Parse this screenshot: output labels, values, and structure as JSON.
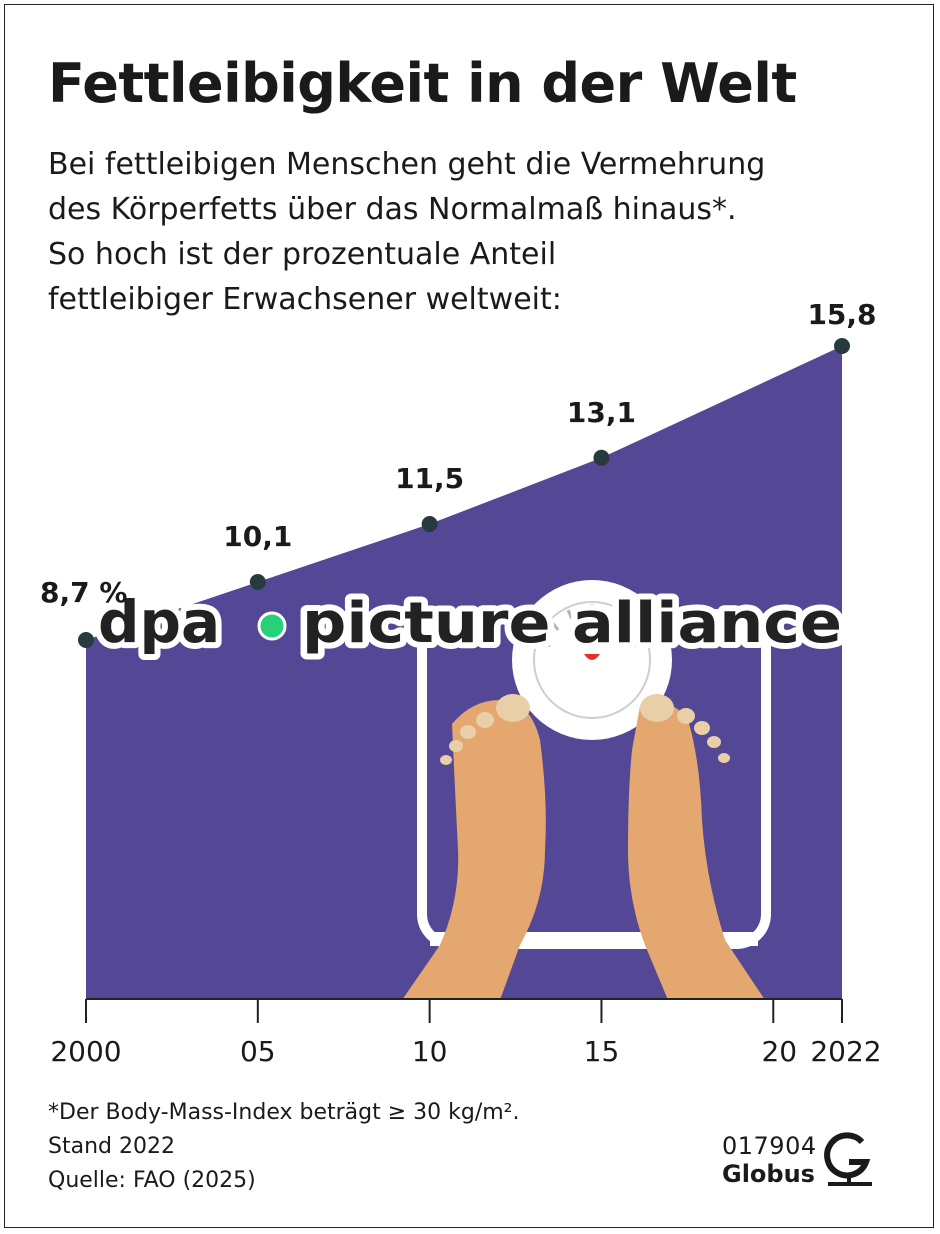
{
  "header": {
    "title": "Fettleibigkeit in der Welt",
    "subtitle_lines": [
      "Bei fettleibigen Menschen geht die Vermehrung",
      "des Körperfetts über das Normalmaß hinaus*.",
      "So hoch ist der prozentuale Anteil",
      "fettleibiger Erwachsener weltweit:"
    ]
  },
  "chart_data": {
    "type": "area",
    "x": [
      2000,
      2005,
      2010,
      2015,
      2022
    ],
    "values": [
      8.7,
      10.1,
      11.5,
      13.1,
      15.8
    ],
    "point_labels": [
      "8,7 %",
      "10,1",
      "11,5",
      "13,1",
      "15,8"
    ],
    "x_ticks": [
      2000,
      2005,
      2010,
      2015,
      2020,
      2022
    ],
    "x_tick_labels": [
      "2000",
      "05",
      "10",
      "15",
      "20",
      "2022"
    ],
    "area_color": "#544796",
    "marker_color": "#273a3d",
    "grid": false
  },
  "watermark": {
    "left": "dpa",
    "right": "picture alliance",
    "dot_color": "#27d17a"
  },
  "footer": {
    "note": "*Der Body-Mass-Index beträgt ≥ 30 kg/m².",
    "status": "Stand 2022",
    "source": "Quelle: FAO (2025)",
    "code": "017904",
    "brand": "Globus"
  }
}
